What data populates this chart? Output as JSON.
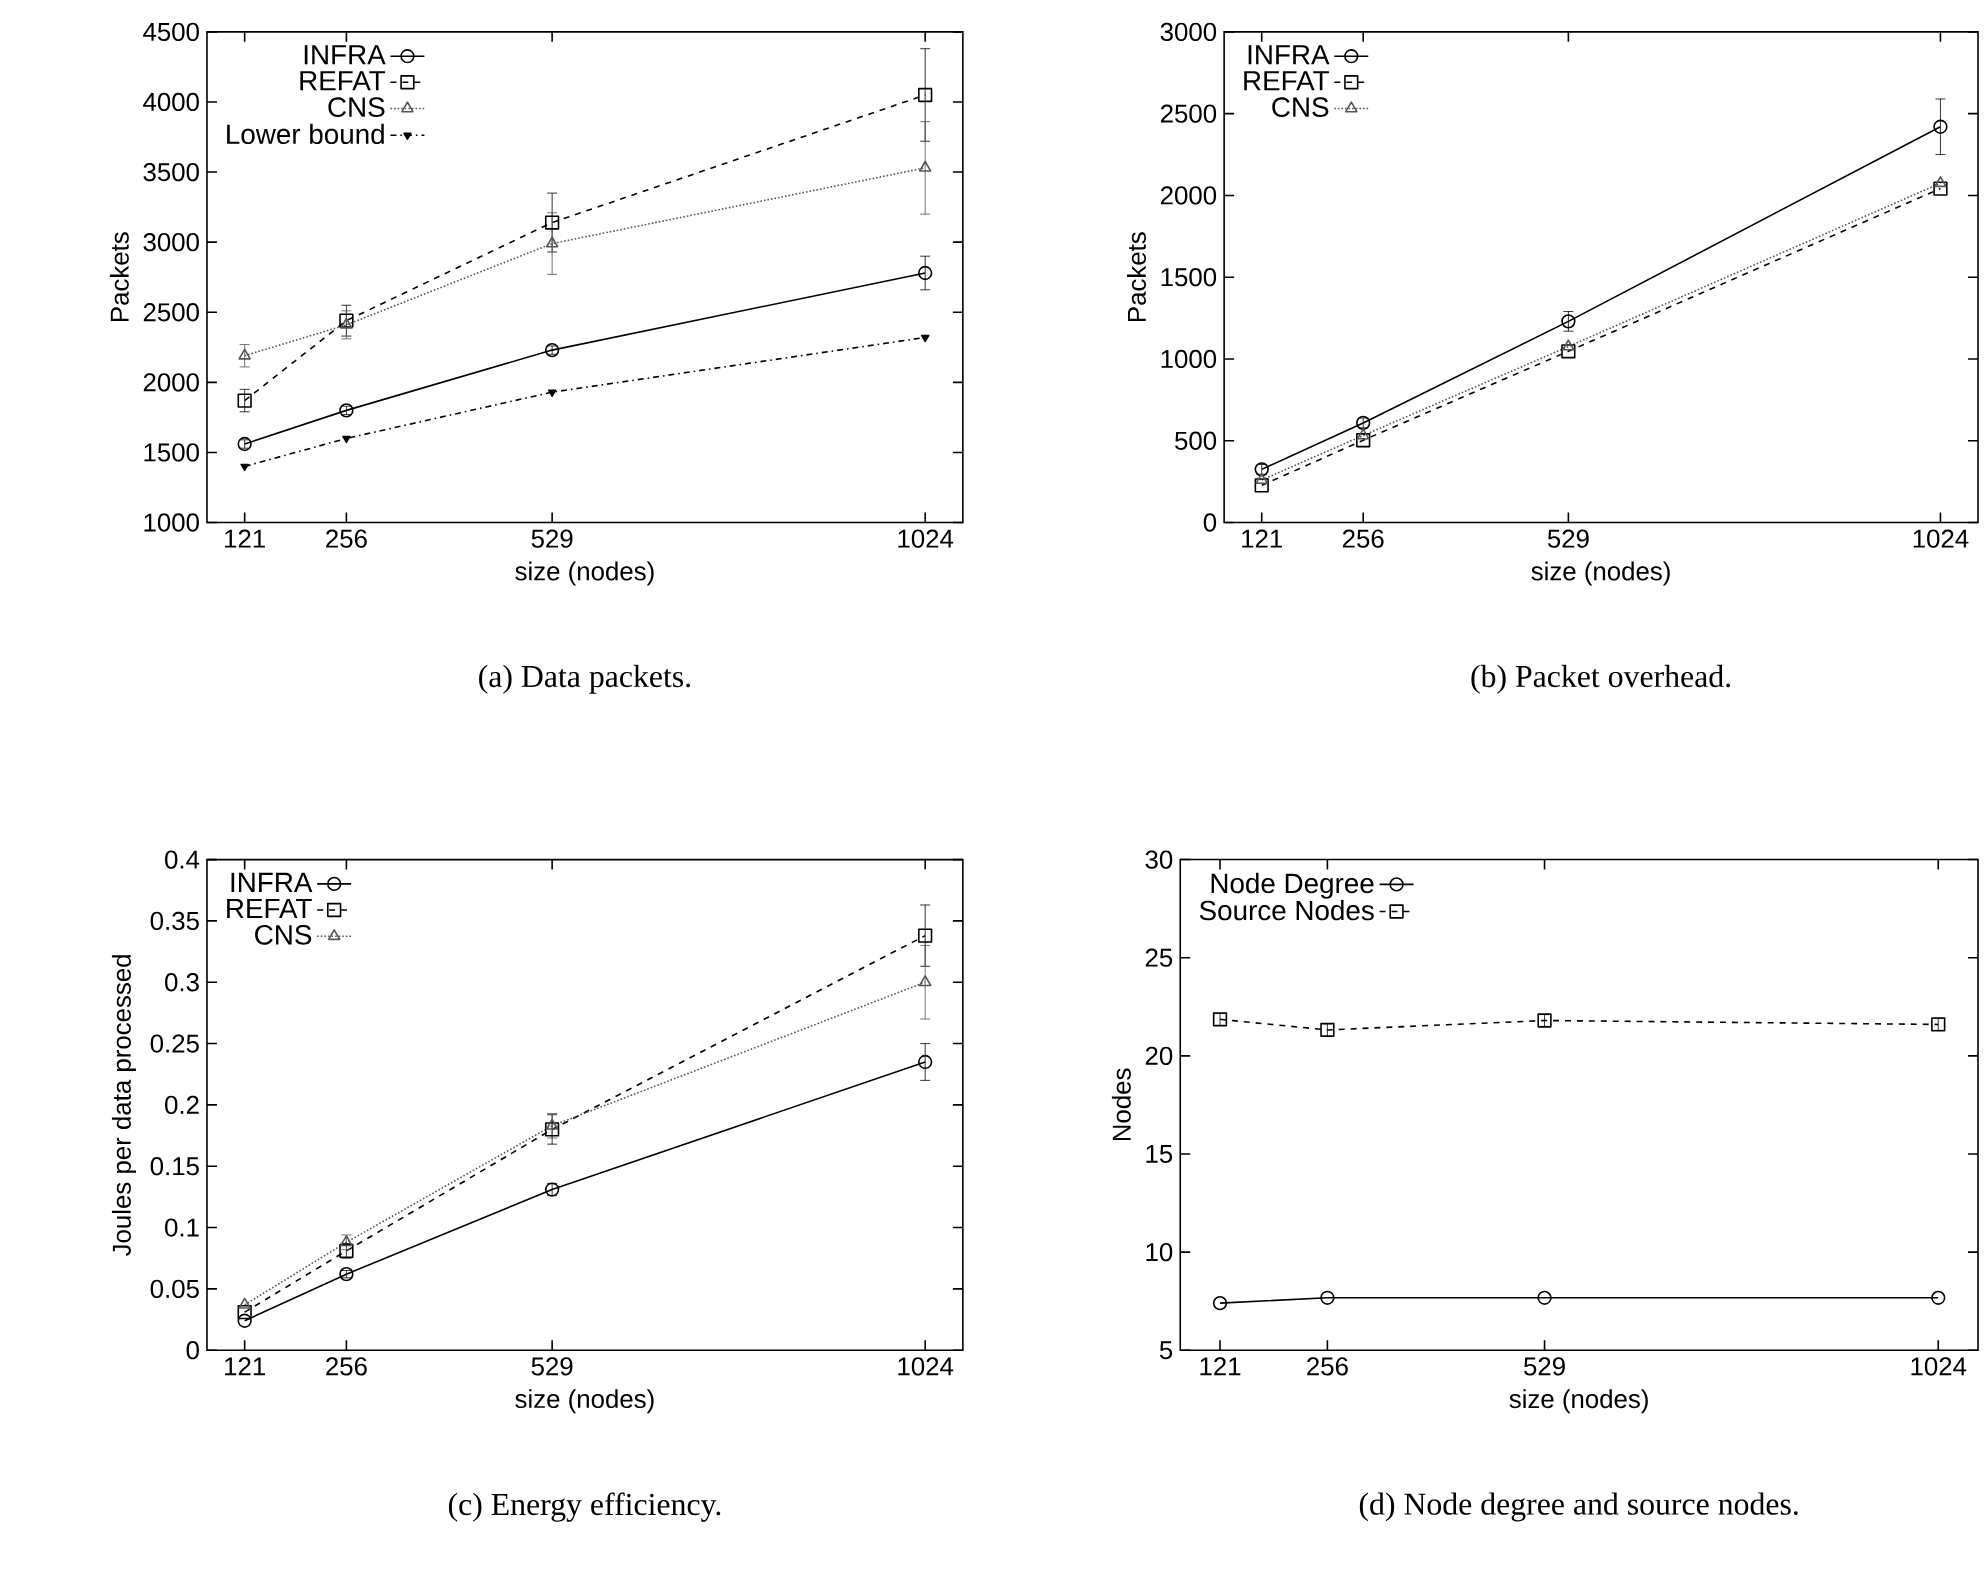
{
  "chart_data": [
    {
      "type": "line",
      "title": "(a) Data packets.",
      "xlabel": "size (nodes)",
      "ylabel": "Packets",
      "x": [
        121,
        256,
        529,
        1024
      ],
      "xlim": [
        71,
        1074
      ],
      "xticks": [
        121,
        256,
        529,
        1024
      ],
      "ylim": [
        1000,
        4500
      ],
      "yticks": [
        1000,
        1500,
        2000,
        2500,
        3000,
        3500,
        4000,
        4500
      ],
      "legend": "top left",
      "series": [
        {
          "name": "INFRA",
          "color": "#000000",
          "marker": "circle",
          "line_style": "solid",
          "values": [
            1560,
            1800,
            2230,
            2780
          ],
          "errors": [
            30,
            30,
            30,
            120
          ]
        },
        {
          "name": "REFAT",
          "color": "#000000",
          "marker": "square",
          "line_style": "dashed",
          "values": [
            1870,
            2440,
            3140,
            4050
          ],
          "errors": [
            80,
            110,
            210,
            330
          ]
        },
        {
          "name": "CNS",
          "color": "#555555",
          "marker": "triangle",
          "line_style": "dotted",
          "values": [
            2190,
            2410,
            2990,
            3530
          ],
          "errors": [
            80,
            100,
            220,
            330
          ]
        },
        {
          "name": "Lower bound",
          "color": "#000000",
          "marker": "triangle-down",
          "line_style": "dashdot",
          "values": [
            1400,
            1600,
            1930,
            2320
          ]
        }
      ]
    },
    {
      "type": "line",
      "title": "(b) Packet overhead.",
      "xlabel": "size (nodes)",
      "ylabel": "Packets",
      "x": [
        121,
        256,
        529,
        1024
      ],
      "xlim": [
        71,
        1074
      ],
      "xticks": [
        121,
        256,
        529,
        1024
      ],
      "ylim": [
        0,
        3000
      ],
      "yticks": [
        0,
        500,
        1000,
        1500,
        2000,
        2500,
        3000
      ],
      "legend": "top left",
      "series": [
        {
          "name": "INFRA",
          "color": "#000000",
          "marker": "circle",
          "line_style": "solid",
          "values": [
            325,
            609,
            1230,
            2420
          ],
          "errors": [
            30,
            30,
            60,
            170
          ]
        },
        {
          "name": "REFAT",
          "color": "#000000",
          "marker": "square",
          "line_style": "dashed",
          "values": [
            227,
            503,
            1047,
            2042
          ]
        },
        {
          "name": "CNS",
          "color": "#555555",
          "marker": "triangle",
          "line_style": "dotted",
          "values": [
            260,
            532,
            1076,
            2075
          ]
        }
      ]
    },
    {
      "type": "line",
      "title": "(c) Energy efficiency.",
      "xlabel": "size (nodes)",
      "ylabel": "Joules per data processed",
      "x": [
        121,
        256,
        529,
        1024
      ],
      "xlim": [
        71,
        1074
      ],
      "xticks": [
        121,
        256,
        529,
        1024
      ],
      "ylim": [
        0,
        0.4
      ],
      "yticks": [
        0,
        0.05,
        0.1,
        0.15,
        0.2,
        0.25,
        0.3,
        0.35,
        0.4
      ],
      "legend": "top left",
      "series": [
        {
          "name": "INFRA",
          "color": "#000000",
          "marker": "circle",
          "line_style": "solid",
          "values": [
            0.024,
            0.062,
            0.131,
            0.235
          ],
          "errors": [
            null,
            0.003,
            0.005,
            0.015
          ]
        },
        {
          "name": "REFAT",
          "color": "#000000",
          "marker": "square",
          "line_style": "dashed",
          "values": [
            0.031,
            0.081,
            0.18,
            0.338
          ],
          "errors": [
            null,
            0.006,
            0.012,
            0.025
          ]
        },
        {
          "name": "CNS",
          "color": "#555555",
          "marker": "triangle",
          "line_style": "dotted",
          "values": [
            0.037,
            0.088,
            0.183,
            0.3
          ],
          "errors": [
            null,
            0.006,
            0.01,
            0.03
          ]
        }
      ]
    },
    {
      "type": "line",
      "title": "(d) Node degree and source nodes.",
      "xlabel": "size (nodes)",
      "ylabel": "Nodes",
      "x": [
        121,
        256,
        529,
        1024
      ],
      "xlim": [
        71,
        1074
      ],
      "xticks": [
        121,
        256,
        529,
        1024
      ],
      "ylim": [
        5,
        30
      ],
      "yticks": [
        5,
        10,
        15,
        20,
        25,
        30
      ],
      "legend": "top left",
      "series": [
        {
          "name": "Node Degree",
          "color": "#000000",
          "marker": "circle",
          "line_style": "solid",
          "values": [
            7.4,
            7.67,
            7.67,
            7.67
          ]
        },
        {
          "name": "Source Nodes",
          "color": "#000000",
          "marker": "square",
          "line_style": "dashed",
          "values": [
            21.86,
            21.32,
            21.8,
            21.6
          ],
          "errors": [
            0.3,
            0.3,
            0.3,
            0.3
          ]
        }
      ]
    }
  ]
}
